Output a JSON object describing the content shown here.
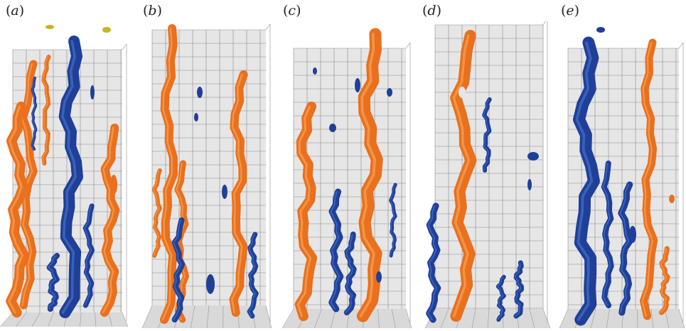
{
  "panels": [
    {
      "id": "a",
      "open": "(",
      "letter": "a",
      "close": ")"
    },
    {
      "id": "b",
      "open": "(",
      "letter": "b",
      "close": ")"
    },
    {
      "id": "c",
      "open": "(",
      "letter": "c",
      "close": ")"
    },
    {
      "id": "d",
      "open": "(",
      "letter": "d",
      "close": ")"
    },
    {
      "id": "e",
      "open": "(",
      "letter": "e",
      "close": ")"
    }
  ],
  "colors": {
    "box_wall": "#e6e6e6",
    "box_floor": "#d9d9d9",
    "grid_line": "#8a8a8a",
    "positive_structure": "#e8701e",
    "positive_highlight": "#ffb060",
    "negative_structure": "#1f3f98",
    "negative_highlight": "#4d7fd6",
    "minor_structure": "#c9b41c"
  },
  "icons": {
    "structure_glyph": "vortex-filament-icon"
  }
}
